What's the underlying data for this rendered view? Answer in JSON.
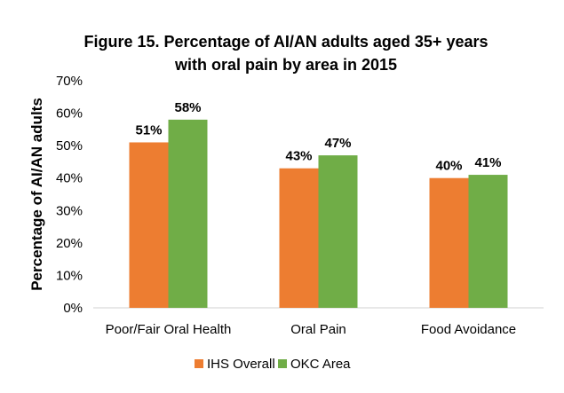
{
  "chart_data": {
    "type": "bar",
    "title_lines": [
      "Figure 15. Percentage of AI/AN adults aged 35+ years",
      "with oral pain by area in 2015"
    ],
    "ylabel": "Percentage of AI/AN adults",
    "xlabel": "",
    "categories": [
      "Poor/Fair Oral Health",
      "Oral Pain",
      "Food Avoidance"
    ],
    "series": [
      {
        "name": "IHS Overall",
        "values": [
          51,
          43,
          40
        ],
        "labels": [
          "51%",
          "43%",
          "40%"
        ],
        "color": "#ED7D31"
      },
      {
        "name": "OKC Area",
        "values": [
          58,
          47,
          41
        ],
        "labels": [
          "58%",
          "47%",
          "41%"
        ],
        "color": "#70AD47"
      }
    ],
    "ylim": [
      0,
      70
    ],
    "yticks": [
      0,
      10,
      20,
      30,
      40,
      50,
      60,
      70
    ],
    "ytick_labels": [
      "0%",
      "10%",
      "20%",
      "30%",
      "40%",
      "50%",
      "60%",
      "70%"
    ],
    "grid": false,
    "legend_position": "bottom"
  }
}
